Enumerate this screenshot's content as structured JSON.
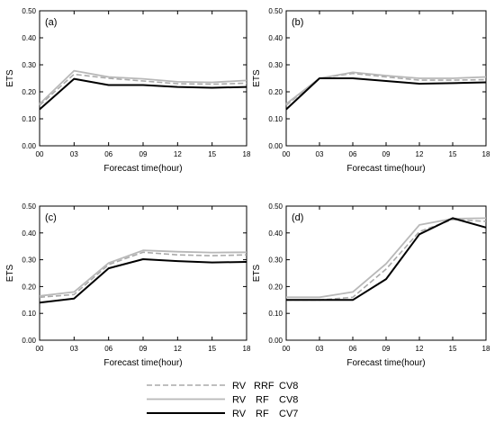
{
  "chart_data": [
    {
      "type": "line",
      "panel_label": "(a)",
      "xlabel": "Forecast time(hour)",
      "ylabel": "ETS",
      "x": [
        "00",
        "03",
        "06",
        "09",
        "12",
        "15",
        "18"
      ],
      "xticks": [
        "00",
        "03",
        "06",
        "09",
        "12",
        "15",
        "18"
      ],
      "ylim": [
        0,
        0.5
      ],
      "yticks": [
        "0.00",
        "0.10",
        "0.20",
        "0.30",
        "0.40",
        "0.50"
      ],
      "series": [
        {
          "name": "RV RRF CV8",
          "values": [
            0.15,
            0.265,
            0.25,
            0.24,
            0.23,
            0.228,
            0.232
          ]
        },
        {
          "name": "RV RF CV8",
          "values": [
            0.155,
            0.278,
            0.255,
            0.248,
            0.237,
            0.235,
            0.242
          ]
        },
        {
          "name": "RV RF CV7",
          "values": [
            0.135,
            0.248,
            0.225,
            0.225,
            0.218,
            0.215,
            0.218
          ]
        }
      ]
    },
    {
      "type": "line",
      "panel_label": "(b)",
      "xlabel": "Forecast time(hour)",
      "ylabel": "ETS",
      "x": [
        "00",
        "03",
        "06",
        "09",
        "12",
        "15",
        "18"
      ],
      "xticks": [
        "00",
        "03",
        "06",
        "09",
        "12",
        "15",
        "18"
      ],
      "ylim": [
        0,
        0.5
      ],
      "yticks": [
        "0.00",
        "0.10",
        "0.20",
        "0.30",
        "0.40",
        "0.50"
      ],
      "series": [
        {
          "name": "RV RRF CV8",
          "values": [
            0.15,
            0.25,
            0.268,
            0.255,
            0.243,
            0.243,
            0.245
          ]
        },
        {
          "name": "RV RF CV8",
          "values": [
            0.155,
            0.25,
            0.272,
            0.26,
            0.25,
            0.25,
            0.255
          ]
        },
        {
          "name": "RV RF CV7",
          "values": [
            0.135,
            0.25,
            0.25,
            0.24,
            0.23,
            0.232,
            0.235
          ]
        }
      ]
    },
    {
      "type": "line",
      "panel_label": "(c)",
      "xlabel": "Forecast time(hour)",
      "ylabel": "ETS",
      "x": [
        "00",
        "03",
        "06",
        "09",
        "12",
        "15",
        "18"
      ],
      "xticks": [
        "00",
        "03",
        "06",
        "09",
        "12",
        "15",
        "18"
      ],
      "ylim": [
        0,
        0.5
      ],
      "yticks": [
        "0.00",
        "0.10",
        "0.20",
        "0.30",
        "0.40",
        "0.50"
      ],
      "series": [
        {
          "name": "RV RRF CV8",
          "values": [
            0.16,
            0.17,
            0.282,
            0.328,
            0.318,
            0.315,
            0.318
          ]
        },
        {
          "name": "RV RF CV8",
          "values": [
            0.165,
            0.18,
            0.288,
            0.335,
            0.33,
            0.327,
            0.328
          ]
        },
        {
          "name": "RV RF CV7",
          "values": [
            0.14,
            0.155,
            0.268,
            0.302,
            0.295,
            0.29,
            0.292
          ]
        }
      ]
    },
    {
      "type": "line",
      "panel_label": "(d)",
      "xlabel": "Forecast time(hour)",
      "ylabel": "ETS",
      "x": [
        "00",
        "03",
        "06",
        "09",
        "12",
        "15",
        "18"
      ],
      "xticks": [
        "00",
        "03",
        "06",
        "09",
        "12",
        "15",
        "18"
      ],
      "ylim": [
        0,
        0.5
      ],
      "yticks": [
        "0.00",
        "0.10",
        "0.20",
        "0.30",
        "0.40",
        "0.50"
      ],
      "series": [
        {
          "name": "RV RRF CV8",
          "values": [
            0.15,
            0.15,
            0.16,
            0.265,
            0.405,
            0.45,
            0.443
          ]
        },
        {
          "name": "RV RF CV8",
          "values": [
            0.16,
            0.16,
            0.18,
            0.285,
            0.43,
            0.453,
            0.455
          ]
        },
        {
          "name": "RV RF CV7",
          "values": [
            0.15,
            0.15,
            0.15,
            0.228,
            0.395,
            0.455,
            0.42
          ]
        }
      ]
    }
  ],
  "legend": {
    "entries": [
      {
        "parts": [
          "RV",
          "RRF",
          "CV8"
        ],
        "color": "#aaaaaa",
        "dash": "6,3",
        "width": 1.6
      },
      {
        "parts": [
          "RV",
          "RF",
          "CV8"
        ],
        "color": "#b8b8b8",
        "dash": "",
        "width": 1.8
      },
      {
        "parts": [
          "RV",
          "RF",
          "CV7"
        ],
        "color": "#000000",
        "dash": "",
        "width": 2.0
      }
    ]
  },
  "style": {
    "series_colors": [
      "#aaaaaa",
      "#b8b8b8",
      "#000000"
    ],
    "series_dash": [
      "6,3",
      "",
      ""
    ],
    "series_width": [
      1.6,
      1.8,
      2.0
    ]
  }
}
